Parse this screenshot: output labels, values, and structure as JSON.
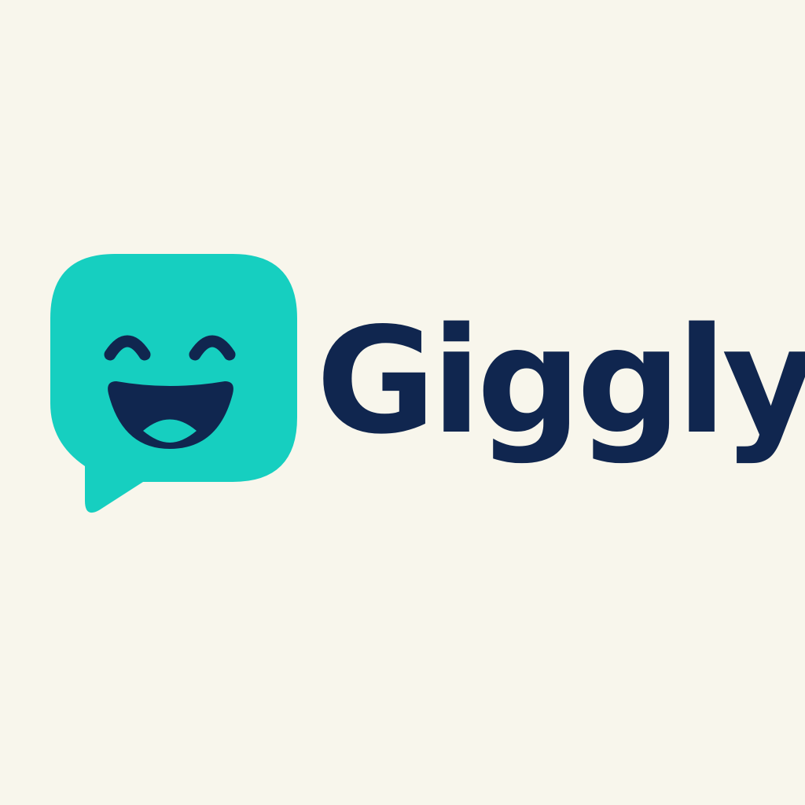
{
  "logo": {
    "wordmark": "Giggly",
    "icon": "smiling-speech-bubble-icon"
  },
  "colors": {
    "background": "#F8F6EC",
    "bubble": "#16CFC0",
    "ink": "#10264F"
  }
}
